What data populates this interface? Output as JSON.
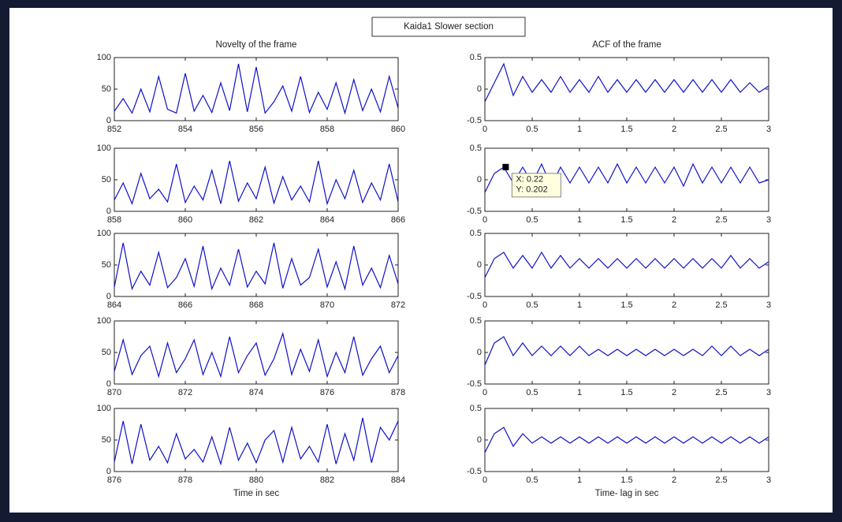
{
  "figure_title": "Kaida1 Slower section",
  "chart_data": [
    {
      "type": "line",
      "title": "Novelty of the frame",
      "color": "#1010c8",
      "x": [
        852,
        852.25,
        852.5,
        852.75,
        853,
        853.25,
        853.5,
        853.75,
        854,
        854.25,
        854.5,
        854.75,
        855,
        855.25,
        855.5,
        855.75,
        856,
        856.25,
        856.5,
        856.75,
        857,
        857.25,
        857.5,
        857.75,
        858,
        858.25,
        858.5,
        858.75,
        859,
        859.25,
        859.5,
        859.75,
        860
      ],
      "values": [
        15,
        35,
        12,
        50,
        14,
        70,
        18,
        12,
        75,
        15,
        40,
        13,
        60,
        16,
        90,
        14,
        85,
        12,
        30,
        55,
        15,
        70,
        13,
        45,
        18,
        60,
        12,
        65,
        16,
        50,
        14,
        70,
        20
      ],
      "xlim": [
        852,
        860
      ],
      "ylim": [
        0,
        100
      ],
      "xticks": [
        852,
        854,
        856,
        858,
        860
      ],
      "yticks": [
        0,
        50,
        100
      ]
    },
    {
      "type": "line",
      "color": "#1010c8",
      "x": [
        858,
        858.25,
        858.5,
        858.75,
        859,
        859.25,
        859.5,
        859.75,
        860,
        860.25,
        860.5,
        860.75,
        861,
        861.25,
        861.5,
        861.75,
        862,
        862.25,
        862.5,
        862.75,
        863,
        863.25,
        863.5,
        863.75,
        864,
        864.25,
        864.5,
        864.75,
        865,
        865.25,
        865.5,
        865.75,
        866
      ],
      "values": [
        18,
        45,
        12,
        60,
        20,
        35,
        15,
        75,
        14,
        40,
        18,
        65,
        12,
        80,
        16,
        45,
        20,
        70,
        13,
        55,
        18,
        40,
        15,
        80,
        12,
        50,
        20,
        65,
        14,
        45,
        18,
        75,
        15
      ],
      "xlim": [
        858,
        866
      ],
      "ylim": [
        0,
        100
      ],
      "xticks": [
        858,
        860,
        862,
        864,
        866
      ],
      "yticks": [
        0,
        50,
        100
      ]
    },
    {
      "type": "line",
      "color": "#1010c8",
      "x": [
        864,
        864.25,
        864.5,
        864.75,
        865,
        865.25,
        865.5,
        865.75,
        866,
        866.25,
        866.5,
        866.75,
        867,
        867.25,
        867.5,
        867.75,
        868,
        868.25,
        868.5,
        868.75,
        869,
        869.25,
        869.5,
        869.75,
        870,
        870.25,
        870.5,
        870.75,
        871,
        871.25,
        871.5,
        871.75,
        872
      ],
      "values": [
        15,
        85,
        12,
        40,
        18,
        70,
        14,
        30,
        60,
        16,
        80,
        12,
        45,
        18,
        75,
        15,
        40,
        20,
        85,
        13,
        60,
        18,
        30,
        75,
        15,
        55,
        12,
        80,
        18,
        45,
        14,
        65,
        20
      ],
      "xlim": [
        864,
        872
      ],
      "ylim": [
        0,
        100
      ],
      "xticks": [
        864,
        866,
        868,
        870,
        872
      ],
      "yticks": [
        0,
        50,
        100
      ]
    },
    {
      "type": "line",
      "color": "#1010c8",
      "x": [
        870,
        870.25,
        870.5,
        870.75,
        871,
        871.25,
        871.5,
        871.75,
        872,
        872.25,
        872.5,
        872.75,
        873,
        873.25,
        873.5,
        873.75,
        874,
        874.25,
        874.5,
        874.75,
        875,
        875.25,
        875.5,
        875.75,
        876,
        876.25,
        876.5,
        876.75,
        877,
        877.25,
        877.5,
        877.75,
        878
      ],
      "values": [
        20,
        70,
        15,
        45,
        60,
        12,
        65,
        18,
        40,
        70,
        15,
        50,
        12,
        75,
        18,
        45,
        65,
        14,
        40,
        80,
        15,
        55,
        20,
        70,
        12,
        50,
        18,
        75,
        14,
        40,
        60,
        18,
        45
      ],
      "xlim": [
        870,
        878
      ],
      "ylim": [
        0,
        100
      ],
      "xticks": [
        870,
        872,
        874,
        876,
        878
      ],
      "yticks": [
        0,
        50,
        100
      ]
    },
    {
      "type": "line",
      "xlabel": "Time in sec",
      "color": "#1010c8",
      "x": [
        876,
        876.25,
        876.5,
        876.75,
        877,
        877.25,
        877.5,
        877.75,
        878,
        878.25,
        878.5,
        878.75,
        879,
        879.25,
        879.5,
        879.75,
        880,
        880.25,
        880.5,
        880.75,
        881,
        881.25,
        881.5,
        881.75,
        882,
        882.25,
        882.5,
        882.75,
        883,
        883.25,
        883.5,
        883.75,
        884
      ],
      "values": [
        15,
        80,
        12,
        75,
        18,
        40,
        14,
        60,
        20,
        35,
        15,
        55,
        12,
        70,
        18,
        45,
        14,
        50,
        65,
        15,
        70,
        20,
        40,
        15,
        75,
        12,
        60,
        18,
        85,
        14,
        70,
        50,
        80
      ],
      "xlim": [
        876,
        884
      ],
      "ylim": [
        0,
        100
      ],
      "xticks": [
        876,
        878,
        880,
        882,
        884
      ],
      "yticks": [
        0,
        50,
        100
      ]
    },
    {
      "type": "line",
      "title": "ACF of the frame",
      "color": "#1010c8",
      "x": [
        0,
        0.1,
        0.2,
        0.3,
        0.4,
        0.5,
        0.6,
        0.7,
        0.8,
        0.9,
        1,
        1.1,
        1.2,
        1.3,
        1.4,
        1.5,
        1.6,
        1.7,
        1.8,
        1.9,
        2,
        2.1,
        2.2,
        2.3,
        2.4,
        2.5,
        2.6,
        2.7,
        2.8,
        2.9,
        3
      ],
      "values": [
        -0.2,
        0.1,
        0.4,
        -0.1,
        0.2,
        -0.05,
        0.15,
        -0.05,
        0.2,
        -0.05,
        0.15,
        -0.05,
        0.2,
        -0.05,
        0.15,
        -0.05,
        0.15,
        -0.05,
        0.15,
        -0.05,
        0.15,
        -0.05,
        0.15,
        -0.05,
        0.15,
        -0.05,
        0.15,
        -0.05,
        0.1,
        -0.05,
        0.05
      ],
      "xlim": [
        0,
        3
      ],
      "ylim": [
        -0.5,
        0.5
      ],
      "xticks": [
        0,
        0.5,
        1,
        1.5,
        2,
        2.5,
        3
      ],
      "yticks": [
        -0.5,
        0,
        0.5
      ]
    },
    {
      "type": "line",
      "color": "#1010c8",
      "x": [
        0,
        0.1,
        0.2,
        0.3,
        0.4,
        0.5,
        0.6,
        0.7,
        0.8,
        0.9,
        1,
        1.1,
        1.2,
        1.3,
        1.4,
        1.5,
        1.6,
        1.7,
        1.8,
        1.9,
        2,
        2.1,
        2.2,
        2.3,
        2.4,
        2.5,
        2.6,
        2.7,
        2.8,
        2.9,
        3
      ],
      "values": [
        -0.2,
        0.1,
        0.2,
        -0.05,
        0.2,
        -0.05,
        0.25,
        -0.1,
        0.2,
        -0.05,
        0.2,
        -0.05,
        0.2,
        -0.05,
        0.25,
        -0.05,
        0.2,
        -0.05,
        0.2,
        -0.05,
        0.2,
        -0.1,
        0.25,
        -0.05,
        0.2,
        -0.05,
        0.2,
        -0.05,
        0.2,
        -0.05,
        0
      ],
      "xlim": [
        0,
        3
      ],
      "ylim": [
        -0.5,
        0.5
      ],
      "xticks": [
        0,
        0.5,
        1,
        1.5,
        2,
        2.5,
        3
      ],
      "yticks": [
        -0.5,
        0,
        0.5
      ],
      "annotations": [
        {
          "x": 0.22,
          "y": 0.202,
          "text": [
            "X: 0.22",
            "Y: 0.202"
          ]
        }
      ]
    },
    {
      "type": "line",
      "color": "#1010c8",
      "x": [
        0,
        0.1,
        0.2,
        0.3,
        0.4,
        0.5,
        0.6,
        0.7,
        0.8,
        0.9,
        1,
        1.1,
        1.2,
        1.3,
        1.4,
        1.5,
        1.6,
        1.7,
        1.8,
        1.9,
        2,
        2.1,
        2.2,
        2.3,
        2.4,
        2.5,
        2.6,
        2.7,
        2.8,
        2.9,
        3
      ],
      "values": [
        -0.2,
        0.1,
        0.2,
        -0.05,
        0.15,
        -0.05,
        0.2,
        -0.05,
        0.15,
        -0.05,
        0.1,
        -0.05,
        0.1,
        -0.05,
        0.1,
        -0.05,
        0.1,
        -0.05,
        0.1,
        -0.05,
        0.1,
        -0.05,
        0.1,
        -0.05,
        0.1,
        -0.05,
        0.15,
        -0.05,
        0.1,
        -0.05,
        0.05
      ],
      "xlim": [
        0,
        3
      ],
      "ylim": [
        -0.5,
        0.5
      ],
      "xticks": [
        0,
        0.5,
        1,
        1.5,
        2,
        2.5,
        3
      ],
      "yticks": [
        -0.5,
        0,
        0.5
      ]
    },
    {
      "type": "line",
      "color": "#1010c8",
      "x": [
        0,
        0.1,
        0.2,
        0.3,
        0.4,
        0.5,
        0.6,
        0.7,
        0.8,
        0.9,
        1,
        1.1,
        1.2,
        1.3,
        1.4,
        1.5,
        1.6,
        1.7,
        1.8,
        1.9,
        2,
        2.1,
        2.2,
        2.3,
        2.4,
        2.5,
        2.6,
        2.7,
        2.8,
        2.9,
        3
      ],
      "values": [
        -0.2,
        0.15,
        0.25,
        -0.05,
        0.15,
        -0.05,
        0.1,
        -0.05,
        0.1,
        -0.05,
        0.1,
        -0.05,
        0.05,
        -0.05,
        0.05,
        -0.05,
        0.05,
        -0.05,
        0.05,
        -0.05,
        0.05,
        -0.05,
        0.05,
        -0.05,
        0.1,
        -0.05,
        0.1,
        -0.05,
        0.05,
        -0.05,
        0.05
      ],
      "xlim": [
        0,
        3
      ],
      "ylim": [
        -0.5,
        0.5
      ],
      "xticks": [
        0,
        0.5,
        1,
        1.5,
        2,
        2.5,
        3
      ],
      "yticks": [
        -0.5,
        0,
        0.5
      ]
    },
    {
      "type": "line",
      "xlabel": "Time- lag in sec",
      "color": "#1010c8",
      "x": [
        0,
        0.1,
        0.2,
        0.3,
        0.4,
        0.5,
        0.6,
        0.7,
        0.8,
        0.9,
        1,
        1.1,
        1.2,
        1.3,
        1.4,
        1.5,
        1.6,
        1.7,
        1.8,
        1.9,
        2,
        2.1,
        2.2,
        2.3,
        2.4,
        2.5,
        2.6,
        2.7,
        2.8,
        2.9,
        3
      ],
      "values": [
        -0.2,
        0.1,
        0.2,
        -0.1,
        0.1,
        -0.05,
        0.05,
        -0.05,
        0.05,
        -0.05,
        0.05,
        -0.05,
        0.05,
        -0.05,
        0.05,
        -0.05,
        0.05,
        -0.05,
        0.05,
        -0.05,
        0.05,
        -0.05,
        0.05,
        -0.05,
        0.05,
        -0.05,
        0.05,
        -0.05,
        0.05,
        -0.05,
        0.05
      ],
      "xlim": [
        0,
        3
      ],
      "ylim": [
        -0.5,
        0.5
      ],
      "xticks": [
        0,
        0.5,
        1,
        1.5,
        2,
        2.5,
        3
      ],
      "yticks": [
        -0.5,
        0,
        0.5
      ]
    }
  ]
}
